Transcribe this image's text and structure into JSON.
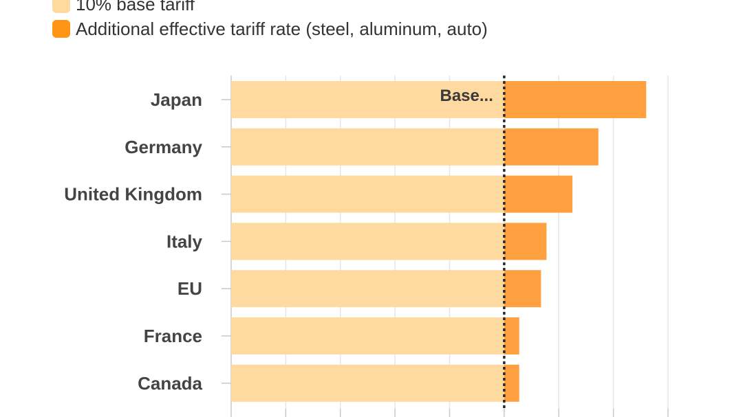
{
  "legend": [
    {
      "label": "10% base tariff",
      "color": "#FED9A0"
    },
    {
      "label": "Additional effective tariff rate (steel, aluminum, auto)",
      "color": "#FF9416"
    }
  ],
  "annotation": "Base...",
  "chart_data": {
    "type": "bar",
    "orientation": "horizontal",
    "stacked": true,
    "categories": [
      "Japan",
      "Germany",
      "United Kingdom",
      "Italy",
      "EU",
      "France",
      "Canada"
    ],
    "series": [
      {
        "name": "10% base tariff",
        "color": "#FED9A0",
        "values": [
          10,
          10,
          10,
          10,
          10,
          10,
          10
        ]
      },
      {
        "name": "Additional effective tariff rate (steel, aluminum, auto)",
        "color": "#FFA040",
        "values": [
          5.2,
          3.45,
          2.5,
          1.55,
          1.35,
          0.55,
          0.55
        ]
      }
    ],
    "xlim": [
      0,
      16
    ],
    "gridlines": [
      0,
      2,
      4,
      6,
      8,
      10,
      12,
      14,
      16
    ],
    "reference_line": 10,
    "legend_position": "top-left"
  }
}
